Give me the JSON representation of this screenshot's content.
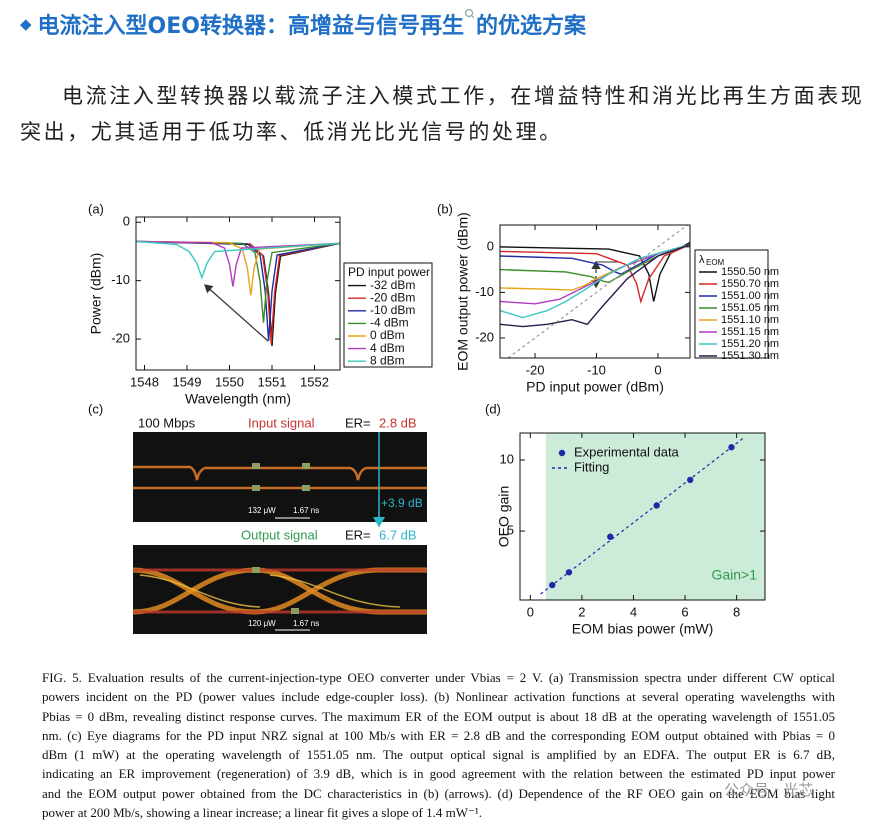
{
  "header": {
    "bullet": "◆",
    "title": "电流注入型OEO转换器：高增益与信号再生",
    "title_tail": "的优选方案"
  },
  "paragraph": "电流注入型转换器以载流子注入模式工作，在增益特性和消光比再生方面表现突出，尤其适用于低功率、低消光比光信号的处理。",
  "figure": {
    "panel_a": {
      "type": "line",
      "label": "(a)",
      "x_label": "Wavelength (nm)",
      "y_label": "Power (dBm)",
      "xlim": [
        1547.8,
        1552.6
      ],
      "xticks": [
        1548,
        1549,
        1550,
        1551,
        1552
      ],
      "ylim": [
        -25.3,
        0.9
      ],
      "yticks": [
        0,
        -10,
        -20
      ],
      "legend_title": "PD input power",
      "series": [
        {
          "name": "-32 dBm",
          "color": "#111111",
          "x": [
            1547.8,
            1550.5,
            1550.8,
            1550.92,
            1551.0,
            1551.08,
            1551.2,
            1552.6
          ],
          "values": [
            -3.3,
            -3.8,
            -5.8,
            -12.2,
            -21.2,
            -12.2,
            -5.8,
            -3.6
          ]
        },
        {
          "name": "-20 dBm",
          "color": "#d62728",
          "x": [
            1547.8,
            1550.48,
            1550.78,
            1550.9,
            1550.98,
            1551.06,
            1551.18,
            1552.6
          ],
          "values": [
            -3.3,
            -3.7,
            -5.7,
            -12,
            -20.8,
            -12,
            -5.7,
            -3.6
          ]
        },
        {
          "name": "-10 dBm",
          "color": "#1f2a9f",
          "x": [
            1547.8,
            1550.42,
            1550.72,
            1550.84,
            1550.92,
            1551.0,
            1551.12,
            1552.6
          ],
          "values": [
            -3.3,
            -3.7,
            -5.6,
            -11.8,
            -20.3,
            -11.8,
            -5.6,
            -3.6
          ]
        },
        {
          "name": "-4 dBm",
          "color": "#3c8c2e",
          "x": [
            1547.8,
            1550.3,
            1550.6,
            1550.72,
            1550.8,
            1550.88,
            1551.0,
            1552.6
          ],
          "values": [
            -3.3,
            -3.6,
            -5.2,
            -10.2,
            -17.2,
            -10.2,
            -5.2,
            -3.6
          ]
        },
        {
          "name": "0 dBm",
          "color": "#e8a317",
          "x": [
            1547.8,
            1550.0,
            1550.3,
            1550.42,
            1550.5,
            1550.58,
            1550.7,
            1552.6
          ],
          "values": [
            -3.3,
            -3.5,
            -4.6,
            -7.9,
            -12.5,
            -7.9,
            -4.6,
            -3.6
          ]
        },
        {
          "name": "4 dBm",
          "color": "#b03cc0",
          "x": [
            1547.8,
            1549.58,
            1549.88,
            1550.0,
            1550.08,
            1550.16,
            1550.28,
            1552.6
          ],
          "values": [
            -3.3,
            -3.5,
            -4.4,
            -7.2,
            -11,
            -7.2,
            -4.4,
            -3.6
          ]
        },
        {
          "name": "8 dBm",
          "color": "#3cc8c0",
          "x": [
            1547.8,
            1548.75,
            1549.05,
            1549.23,
            1549.35,
            1549.47,
            1549.65,
            1552.6
          ],
          "values": [
            -3.3,
            -3.8,
            -5,
            -7,
            -9.5,
            -7,
            -5,
            -3.6
          ]
        }
      ]
    },
    "panel_b": {
      "type": "line",
      "label": "(b)",
      "x_label": "PD input power (dBm)",
      "y_label": "EOM output power (dBm)",
      "xlim": [
        -25.7,
        5.2
      ],
      "xticks": [
        -20,
        -10,
        0
      ],
      "ylim": [
        -24.4,
        4.8
      ],
      "yticks": [
        0,
        -10,
        -20
      ],
      "legend_title": {
        "symbol": "λ",
        "subscript": "EOM"
      },
      "series": [
        {
          "name": "1550.50 nm",
          "color": "#111111",
          "x": [
            -25.7,
            -8,
            -3,
            -1.5,
            -0.7,
            0.3,
            2,
            5.2
          ],
          "values": [
            0,
            -0.5,
            -2,
            -6,
            -12,
            -6,
            -1.5,
            1
          ]
        },
        {
          "name": "1550.70 nm",
          "color": "#d62728",
          "x": [
            -25.7,
            -10,
            -5,
            -3.5,
            -2.8,
            -1.5,
            1,
            5.2
          ],
          "values": [
            -1,
            -1.5,
            -4,
            -8,
            -12,
            -7,
            -2,
            0.5
          ]
        },
        {
          "name": "1551.00 nm",
          "color": "#1f2a9f",
          "x": [
            -25.7,
            -14,
            -9,
            -7,
            -6,
            -4,
            0,
            5.2
          ],
          "values": [
            -2,
            -2.5,
            -4,
            -5.5,
            -6,
            -4.5,
            -1.5,
            0.5
          ]
        },
        {
          "name": "1551.05 nm",
          "color": "#3c8c2e",
          "x": [
            -25.7,
            -15,
            -11,
            -9,
            -8,
            -5,
            0,
            5.2
          ],
          "values": [
            -5,
            -5.5,
            -6.5,
            -7.5,
            -7.8,
            -5.5,
            -2,
            0.5
          ]
        },
        {
          "name": "1551.10 nm",
          "color": "#e8a317",
          "x": [
            -25.7,
            -18,
            -14,
            -12,
            -10,
            -6,
            0,
            5.2
          ],
          "values": [
            -9,
            -9.3,
            -9.5,
            -8.5,
            -7,
            -4.5,
            -1.5,
            0.5
          ]
        },
        {
          "name": "1551.15 nm",
          "color": "#b03cc0",
          "x": [
            -25.7,
            -20,
            -16,
            -13,
            -10,
            -6,
            0,
            5.2
          ],
          "values": [
            -12,
            -12.5,
            -11.5,
            -9.5,
            -7.5,
            -4.5,
            -1.5,
            0.5
          ]
        },
        {
          "name": "1551.20 nm",
          "color": "#3cc8c0",
          "x": [
            -25.7,
            -22,
            -18,
            -15,
            -12,
            -8,
            -3,
            5.2
          ],
          "values": [
            -14,
            -15.5,
            -14,
            -12,
            -9.5,
            -6,
            -2.5,
            0.5
          ]
        },
        {
          "name": "1551.30 nm",
          "color": "#2a1a4a",
          "x": [
            -25.7,
            -22,
            -18,
            -14,
            -11.5,
            -9,
            -5,
            0,
            5.2
          ],
          "values": [
            -17,
            -17.5,
            -17,
            -16,
            -17,
            -13,
            -7,
            -2,
            0.5
          ]
        },
        {
          "color": "#999999",
          "dash": true,
          "x": [
            -24.4,
            4.8
          ],
          "values": [
            -24.4,
            4.8
          ]
        }
      ]
    },
    "panel_c": {
      "label": "(c)",
      "rate": "100 Mbps",
      "input_title": "Input signal",
      "input_er_prefix": "ER=",
      "input_er": "2.8 dB",
      "improvement": "+3.9 dB",
      "input_power": "132 μW",
      "input_time": "1.67 ns",
      "output_title": "Output signal",
      "output_er_prefix": "ER=",
      "output_er": "6.7 dB",
      "output_power": "120 μW",
      "output_time": "1.67 ns"
    },
    "panel_d": {
      "type": "scatter",
      "label": "(d)",
      "x_label": "EOM bias power (mW)",
      "y_label": "OEO gain",
      "xlim": [
        -0.4,
        9.1
      ],
      "xticks": [
        0,
        2,
        4,
        6,
        8
      ],
      "ylim": [
        0.15,
        11.9
      ],
      "yticks": [
        5,
        10
      ],
      "shade_xlim": [
        0.6,
        9.1
      ],
      "annotation": "Gain>1",
      "series": [
        {
          "name": "Experimental data",
          "color": "#1f2aa8",
          "x": [
            0.85,
            1.5,
            3.1,
            4.9,
            6.2,
            7.8
          ],
          "values": [
            1.2,
            2.1,
            4.6,
            6.8,
            8.6,
            10.9
          ]
        },
        {
          "name": "Fitting",
          "color": "#1f2aa8",
          "dash": true,
          "x": [
            0.4,
            8.3
          ],
          "values": [
            0.57,
            11.6
          ]
        }
      ]
    }
  },
  "caption": [
    "FIG. 5. Evaluation results of the current-injection-type OEO converter under Vbias = 2 V. (a) Transmission spectra under different CW optical",
    "powers incident on the PD (power values include edge-coupler loss). (b) Nonlinear activation functions at several operating wavelengths with",
    "Pbias = 0 dBm, revealing distinct response curves. The maximum ER of the EOM output is about 18 dB at the operating wavelength of 1551.05",
    "nm. (c) Eye diagrams for the PD input NRZ signal at 100 Mb/s with ER = 2.8 dB and the corresponding EOM output obtained with Pbias = 0",
    "dBm (1 mW) at the operating wavelength of 1551.05 nm. The output optical signal is amplified by an EDFA. The output ER is 6.7 dB,",
    "indicating an ER improvement (regeneration) of 3.9 dB, which is in good agreement with the relation between the estimated PD input power",
    "and the EOM output power obtained from the DC characteristics in (b) (arrows). (d) Dependence of the RF OEO gain on the EOM bias light",
    "power at 200 Mb/s, showing a linear increase; a linear fit gives a slope of 1.4 mW⁻¹."
  ],
  "watermark": "公众号 · 光芯"
}
